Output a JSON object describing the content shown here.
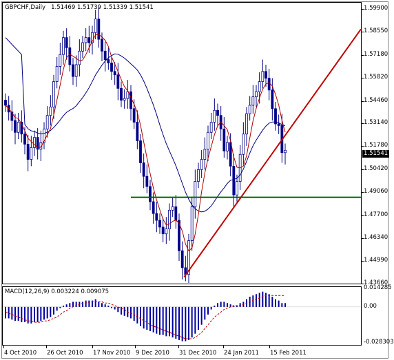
{
  "chart_data": [
    {
      "type": "candlestick",
      "symbol": "GBPCHF",
      "timeframe": "Daily",
      "title": "GBPCHF,Daily",
      "ohlc": {
        "open": "1.51469",
        "high": "1.51739",
        "low": "1.51339",
        "close": "1.51541"
      },
      "ylim": [
        1.4366,
        1.6026
      ],
      "y_ticks": [
        "1.59900",
        "1.58550",
        "1.57180",
        "1.55820",
        "1.54460",
        "1.53140",
        "1.51780",
        "1.50420",
        "1.49060",
        "1.47700",
        "1.46340",
        "1.44990",
        "1.43660"
      ],
      "current_price": "1.51541",
      "x_ticks": [
        "4 Oct 2010",
        "26 Oct 2010",
        "17 Nov 2010",
        "9 Dec 2010",
        "31 Dec 2010",
        "24 Jan 2011",
        "15 Feb 2011"
      ],
      "close_series": [
        1.542,
        1.538,
        1.533,
        1.526,
        1.532,
        1.525,
        1.519,
        1.51,
        1.517,
        1.523,
        1.516,
        1.52,
        1.528,
        1.536,
        1.541,
        1.556,
        1.565,
        1.572,
        1.582,
        1.576,
        1.566,
        1.559,
        1.566,
        1.574,
        1.579,
        1.582,
        1.579,
        1.585,
        1.593,
        1.581,
        1.574,
        1.569,
        1.567,
        1.562,
        1.56,
        1.552,
        1.545,
        1.546,
        1.55,
        1.54,
        1.532,
        1.521,
        1.508,
        1.5,
        1.494,
        1.485,
        1.478,
        1.474,
        1.47,
        1.466,
        1.469,
        1.48,
        1.482,
        1.474,
        1.456,
        1.446,
        1.442,
        1.462,
        1.482,
        1.497,
        1.504,
        1.51,
        1.516,
        1.526,
        1.532,
        1.539,
        1.536,
        1.528,
        1.515,
        1.52,
        1.506,
        1.489,
        1.497,
        1.513,
        1.525,
        1.537,
        1.542,
        1.547,
        1.55,
        1.556,
        1.562,
        1.558,
        1.551,
        1.54,
        1.531,
        1.53,
        1.514,
        1.5154
      ],
      "lines": [
        {
          "name": "Moving Average (slow)",
          "color": "#00007f"
        },
        {
          "name": "Moving Average (fast)",
          "color": "#b00000"
        },
        {
          "name": "Trendline",
          "color": "#c00000"
        },
        {
          "name": "Horizontal support",
          "color": "#006400",
          "value": 1.4876
        }
      ]
    },
    {
      "type": "bar",
      "title": "MACD(12,26,9) 0.003224 0.009075",
      "indicator": "MACD(12,26,9)",
      "main_value": "0.003224",
      "signal_value": "0.009075",
      "ylim": [
        -0.0298,
        0.0156
      ],
      "y_ticks": [
        "0.014285",
        "0.00",
        "-0.028303"
      ],
      "histogram": [
        -0.009,
        -0.009,
        -0.01,
        -0.011,
        -0.011,
        -0.012,
        -0.012,
        -0.013,
        -0.013,
        -0.012,
        -0.012,
        -0.011,
        -0.01,
        -0.009,
        -0.008,
        -0.006,
        -0.003,
        -0.001,
        0.001,
        0.002,
        0.003,
        0.004,
        0.004,
        0.004,
        0.004,
        0.005,
        0.005,
        0.005,
        0.006,
        0.004,
        0.003,
        0.002,
        0.001,
        -0.001,
        -0.002,
        -0.004,
        -0.006,
        -0.007,
        -0.008,
        -0.009,
        -0.011,
        -0.013,
        -0.015,
        -0.017,
        -0.018,
        -0.019,
        -0.02,
        -0.021,
        -0.022,
        -0.022,
        -0.023,
        -0.023,
        -0.024,
        -0.025,
        -0.026,
        -0.027,
        -0.027,
        -0.026,
        -0.024,
        -0.021,
        -0.018,
        -0.014,
        -0.01,
        -0.006,
        -0.002,
        0.001,
        0.003,
        0.004,
        0.004,
        0.003,
        0.002,
        0.001,
        0.001,
        0.003,
        0.004,
        0.006,
        0.008,
        0.009,
        0.01,
        0.011,
        0.012,
        0.011,
        0.01,
        0.008,
        0.006,
        0.005,
        0.003,
        0.003
      ],
      "signal": [
        -0.004,
        -0.005,
        -0.006,
        -0.007,
        -0.008,
        -0.009,
        -0.01,
        -0.011,
        -0.011,
        -0.012,
        -0.012,
        -0.012,
        -0.011,
        -0.011,
        -0.01,
        -0.009,
        -0.008,
        -0.006,
        -0.004,
        -0.003,
        -0.001,
        0.0,
        0.001,
        0.002,
        0.003,
        0.003,
        0.004,
        0.004,
        0.004,
        0.004,
        0.004,
        0.003,
        0.003,
        0.002,
        0.001,
        0.0,
        -0.001,
        -0.002,
        -0.004,
        -0.005,
        -0.006,
        -0.008,
        -0.009,
        -0.011,
        -0.012,
        -0.014,
        -0.015,
        -0.016,
        -0.017,
        -0.018,
        -0.019,
        -0.02,
        -0.021,
        -0.022,
        -0.023,
        -0.024,
        -0.025,
        -0.025,
        -0.025,
        -0.024,
        -0.022,
        -0.02,
        -0.017,
        -0.014,
        -0.011,
        -0.008,
        -0.006,
        -0.004,
        -0.002,
        -0.001,
        0.0,
        0.001,
        0.001,
        0.001,
        0.002,
        0.003,
        0.004,
        0.005,
        0.006,
        0.007,
        0.008,
        0.009,
        0.009,
        0.009,
        0.009,
        0.009,
        0.009,
        0.009
      ],
      "histogram_color": "#00009f",
      "signal_color": "#c00000"
    }
  ]
}
